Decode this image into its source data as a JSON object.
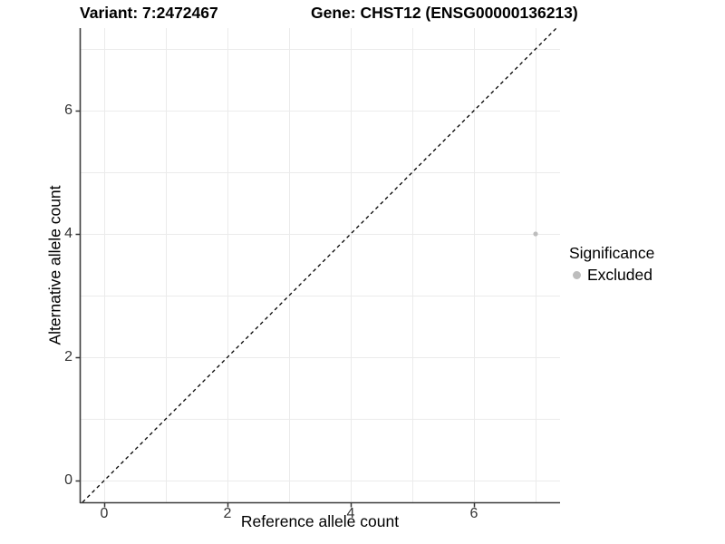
{
  "chart_data": {
    "type": "scatter",
    "title_left": "Variant: 7:2472467",
    "title_right": "Gene: CHST12 (ENSG00000136213)",
    "xlabel": "Reference allele count",
    "ylabel": "Alternative allele count",
    "xlim": [
      -0.4,
      7.4
    ],
    "ylim": [
      -0.35,
      7.35
    ],
    "x_ticks": [
      0,
      2,
      4,
      6
    ],
    "y_ticks": [
      0,
      2,
      4,
      6
    ],
    "gridlines": [
      0,
      1,
      2,
      3,
      4,
      5,
      6,
      7
    ],
    "grid": true,
    "identity_line": {
      "style": "dashed",
      "slope": 1,
      "intercept": 0,
      "color": "#000000"
    },
    "points": [
      {
        "x": 7,
        "y": 4,
        "series": "Excluded"
      }
    ],
    "legend": {
      "title": "Significance",
      "position": "right",
      "items": [
        {
          "label": "Excluded",
          "color": "#bdbdbd"
        }
      ]
    },
    "colors": {
      "point": "#bdbdbd",
      "grid": "#ebebeb",
      "axis_line": "#3c3c3c",
      "tick_mark": "#333333",
      "tick_label": "#333333",
      "text": "#000000",
      "background": "#ffffff"
    }
  }
}
